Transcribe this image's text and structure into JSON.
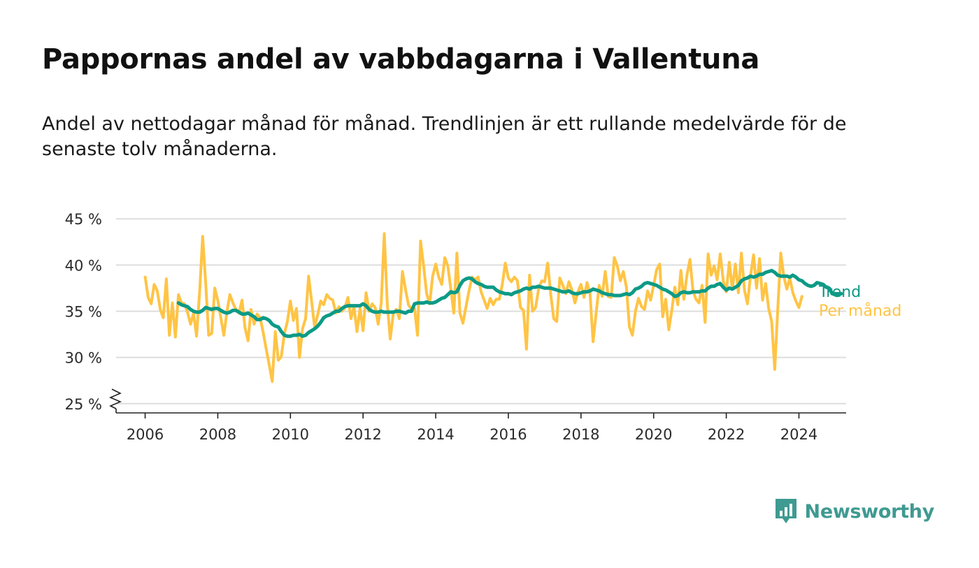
{
  "title": "Pappornas andel av vabbdagarna i Vallentuna",
  "subtitle": "Andel av nettodagar månad för månad. Trendlinjen är ett rullande medelvärde för de senaste tolv månaderna.",
  "brand": {
    "name": "Newsworthy",
    "icon": "newsworthy-logo-icon",
    "color": "#3f9a91"
  },
  "chart_data": {
    "type": "line",
    "x_unit": "year (decimal, monthly points)",
    "xlim": [
      2005.2,
      2025.3
    ],
    "ylim": [
      24,
      46
    ],
    "y_break": true,
    "y_ticks": [
      25,
      30,
      35,
      40,
      45
    ],
    "y_tick_labels": [
      "25 %",
      "30 %",
      "35 %",
      "40 %",
      "45 %"
    ],
    "x_ticks": [
      2006,
      2008,
      2010,
      2012,
      2014,
      2016,
      2018,
      2020,
      2022,
      2024
    ],
    "x_tick_labels": [
      "2006",
      "2008",
      "2010",
      "2012",
      "2014",
      "2016",
      "2018",
      "2020",
      "2022",
      "2024"
    ],
    "grid": true,
    "legend": "direct labels at right end of lines",
    "series": [
      {
        "name": "Per månad",
        "color": "#ffc445",
        "x_start": 2006.0,
        "x_step": 0.0833333,
        "values": [
          38.7,
          36.5,
          35.8,
          37.9,
          37.2,
          35.2,
          34.3,
          38.5,
          32.4,
          35.9,
          32.2,
          36.8,
          35.9,
          35.8,
          34.9,
          33.6,
          34.8,
          32.3,
          37.1,
          43.1,
          38.1,
          32.4,
          32.6,
          37.5,
          36.2,
          34.3,
          32.4,
          34.9,
          36.8,
          35.9,
          35.2,
          34.8,
          36.2,
          33.2,
          31.8,
          35.2,
          33.6,
          34.7,
          34.3,
          32.7,
          30.9,
          29.2,
          27.4,
          32.8,
          29.7,
          30.1,
          32.6,
          33.9,
          36.1,
          34.0,
          35.3,
          30.0,
          33.1,
          34.2,
          38.8,
          36.1,
          33.3,
          34.6,
          36.1,
          35.7,
          36.8,
          36.4,
          36.2,
          34.8,
          35.5,
          35.0,
          35.4,
          36.5,
          34.2,
          35.5,
          32.8,
          35.3,
          32.9,
          37.0,
          35.0,
          35.8,
          35.4,
          33.6,
          35.9,
          43.4,
          35.8,
          32.0,
          34.8,
          35.2,
          34.2,
          39.3,
          37.4,
          35.7,
          35.2,
          35.3,
          32.4,
          42.6,
          39.9,
          36.9,
          35.8,
          38.8,
          40.1,
          38.7,
          37.9,
          40.8,
          39.9,
          37.4,
          34.8,
          41.3,
          34.8,
          33.7,
          35.5,
          37.2,
          38.7,
          38.4,
          38.7,
          37.1,
          36.2,
          35.3,
          36.4,
          35.7,
          36.3,
          36.3,
          37.9,
          40.2,
          38.6,
          38.2,
          38.7,
          38.3,
          35.4,
          35.1,
          30.9,
          38.9,
          35.0,
          35.4,
          37.4,
          38.3,
          38.2,
          40.2,
          36.8,
          34.2,
          33.9,
          38.6,
          37.8,
          36.9,
          38.2,
          37.3,
          35.9,
          37.1,
          37.9,
          36.5,
          38.1,
          36.9,
          31.7,
          34.8,
          37.8,
          36.6,
          39.3,
          36.6,
          36.5,
          40.8,
          39.9,
          38.3,
          39.3,
          37.6,
          33.3,
          32.4,
          35.0,
          36.4,
          35.5,
          35.2,
          37.2,
          36.2,
          37.8,
          39.5,
          40.1,
          34.4,
          36.3,
          33.0,
          35.1,
          37.6,
          35.7,
          39.4,
          36.3,
          38.9,
          40.6,
          37.2,
          36.3,
          35.9,
          37.8,
          33.8,
          41.2,
          38.9,
          39.9,
          38.4,
          41.2,
          38.3,
          37.1,
          40.3,
          37.4,
          40.1,
          37.0,
          41.3,
          37.3,
          35.8,
          38.8,
          41.1,
          37.5,
          40.7,
          36.2,
          38.0,
          35.3,
          33.9,
          28.7,
          35.2,
          41.3,
          38.8,
          37.4,
          38.6,
          37.0,
          36.1,
          35.4,
          36.6
        ]
      },
      {
        "name": "Trend",
        "color": "#0d9a86",
        "x_start": 2006.9167,
        "x_step": 0.0833333,
        "values": [
          35.9,
          35.7,
          35.6,
          35.5,
          35.2,
          35.0,
          34.9,
          34.9,
          35.1,
          35.4,
          35.3,
          35.2,
          35.3,
          35.3,
          35.1,
          34.9,
          34.8,
          34.9,
          35.1,
          35.1,
          34.9,
          34.7,
          34.7,
          34.8,
          34.6,
          34.4,
          34.1,
          34.1,
          34.3,
          34.2,
          34.0,
          33.6,
          33.4,
          33.3,
          32.8,
          32.4,
          32.3,
          32.3,
          32.4,
          32.4,
          32.5,
          32.3,
          32.4,
          32.7,
          32.9,
          33.1,
          33.4,
          33.8,
          34.3,
          34.5,
          34.6,
          34.8,
          35.0,
          35.0,
          35.3,
          35.5,
          35.6,
          35.6,
          35.6,
          35.6,
          35.6,
          35.8,
          35.6,
          35.2,
          35.0,
          34.9,
          34.9,
          35.0,
          34.9,
          34.9,
          34.9,
          34.9,
          35.0,
          35.0,
          34.9,
          34.8,
          35.0,
          35.0,
          35.8,
          35.9,
          35.9,
          35.9,
          36.0,
          35.9,
          35.9,
          36.0,
          36.2,
          36.4,
          36.5,
          36.8,
          37.1,
          37.0,
          37.1,
          37.8,
          38.3,
          38.5,
          38.6,
          38.5,
          38.2,
          38.0,
          37.9,
          37.7,
          37.6,
          37.6,
          37.6,
          37.3,
          37.1,
          37.0,
          36.9,
          36.9,
          36.8,
          37.0,
          37.1,
          37.2,
          37.4,
          37.5,
          37.4,
          37.6,
          37.6,
          37.7,
          37.6,
          37.5,
          37.5,
          37.5,
          37.4,
          37.3,
          37.2,
          37.1,
          37.1,
          37.2,
          37.0,
          36.9,
          36.9,
          37.0,
          37.1,
          37.1,
          37.2,
          37.4,
          37.3,
          37.2,
          37.0,
          36.9,
          36.8,
          36.8,
          36.7,
          36.7,
          36.7,
          36.8,
          36.9,
          36.8,
          37.0,
          37.4,
          37.5,
          37.7,
          38.0,
          38.1,
          38.0,
          37.9,
          37.8,
          37.6,
          37.4,
          37.3,
          37.1,
          36.9,
          36.6,
          36.7,
          37.0,
          37.1,
          37.0,
          37.0,
          37.1,
          37.1,
          37.1,
          37.2,
          37.2,
          37.5,
          37.7,
          37.7,
          37.9,
          38.0,
          37.6,
          37.3,
          37.5,
          37.4,
          37.6,
          37.8,
          38.3,
          38.5,
          38.6,
          38.8,
          38.7,
          38.8,
          39.0,
          39.0,
          39.2,
          39.3,
          39.4,
          39.2,
          38.9,
          38.8,
          38.8,
          38.8,
          38.7,
          38.9,
          38.7,
          38.4,
          38.3,
          38.0,
          37.8,
          37.7,
          37.8,
          38.1,
          38.0,
          37.9,
          37.6,
          37.5,
          36.9,
          36.8,
          36.8,
          36.9
        ]
      }
    ]
  }
}
